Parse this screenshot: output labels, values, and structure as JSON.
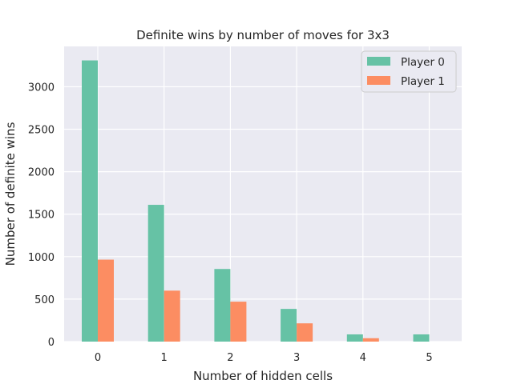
{
  "chart_data": {
    "type": "bar",
    "title": "Definite wins by number of moves for 3x3",
    "xlabel": "Number of hidden cells",
    "ylabel": "Number of definite wins",
    "categories": [
      "0",
      "1",
      "2",
      "3",
      "4",
      "5"
    ],
    "series": [
      {
        "name": "Player 0",
        "color": "#66c2a5",
        "values": [
          3310,
          1610,
          855,
          385,
          85,
          85
        ]
      },
      {
        "name": "Player 1",
        "color": "#fc8d62",
        "values": [
          965,
          600,
          470,
          215,
          40,
          0
        ]
      }
    ],
    "ylim": [
      0,
      3475
    ],
    "yticks": [
      0,
      500,
      1000,
      1500,
      2000,
      2500,
      3000
    ],
    "grid": true,
    "legend_position": "top-right",
    "background": "#eaeaf2"
  }
}
